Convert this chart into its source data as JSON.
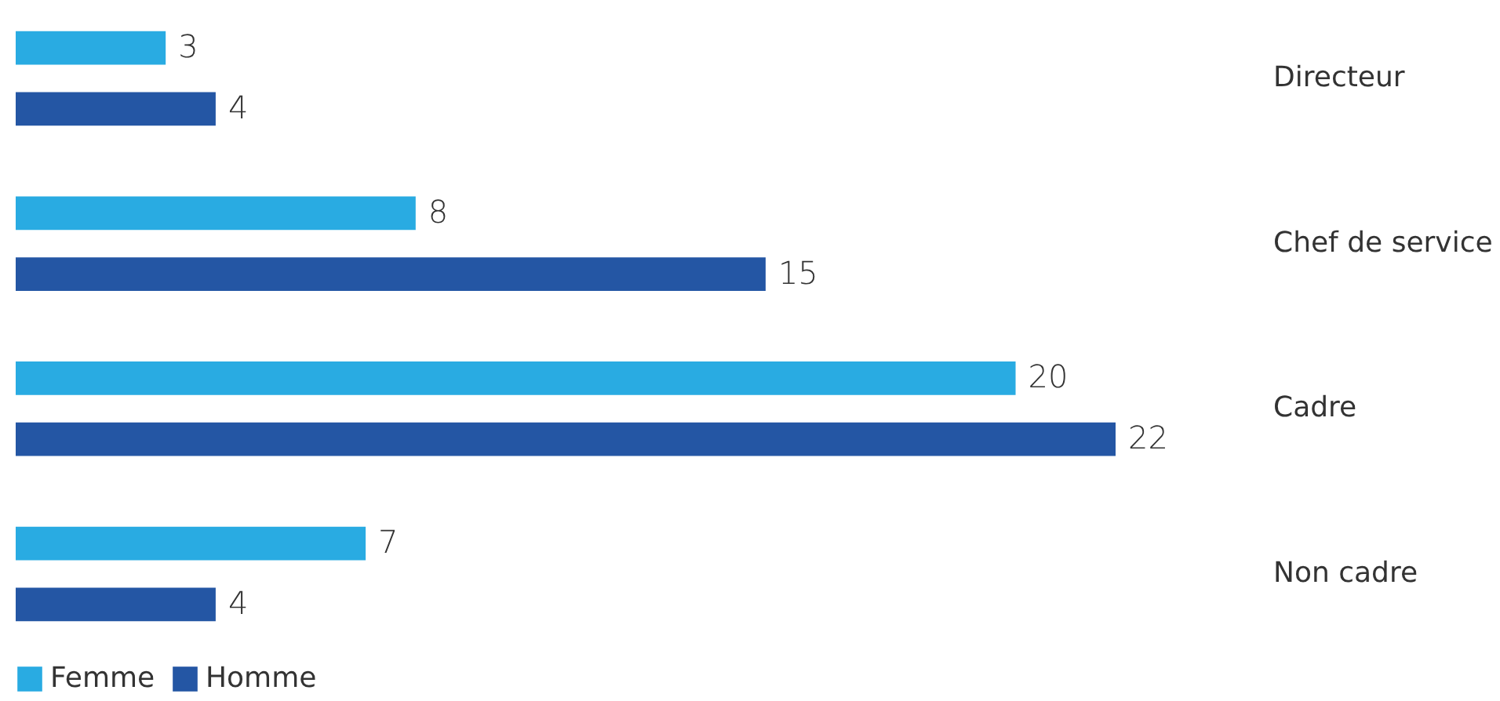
{
  "chart_data": {
    "type": "bar",
    "orientation": "horizontal",
    "categories": [
      "Directeur",
      "Chef de service",
      "Cadre",
      "Non cadre"
    ],
    "series": [
      {
        "name": "Femme",
        "color": "#29abe2",
        "values": [
          3,
          8,
          20,
          7
        ]
      },
      {
        "name": "Homme",
        "color": "#2456a4",
        "values": [
          4,
          15,
          22,
          4
        ]
      }
    ],
    "data_labels": true,
    "legend": "bottom",
    "grid": false
  }
}
